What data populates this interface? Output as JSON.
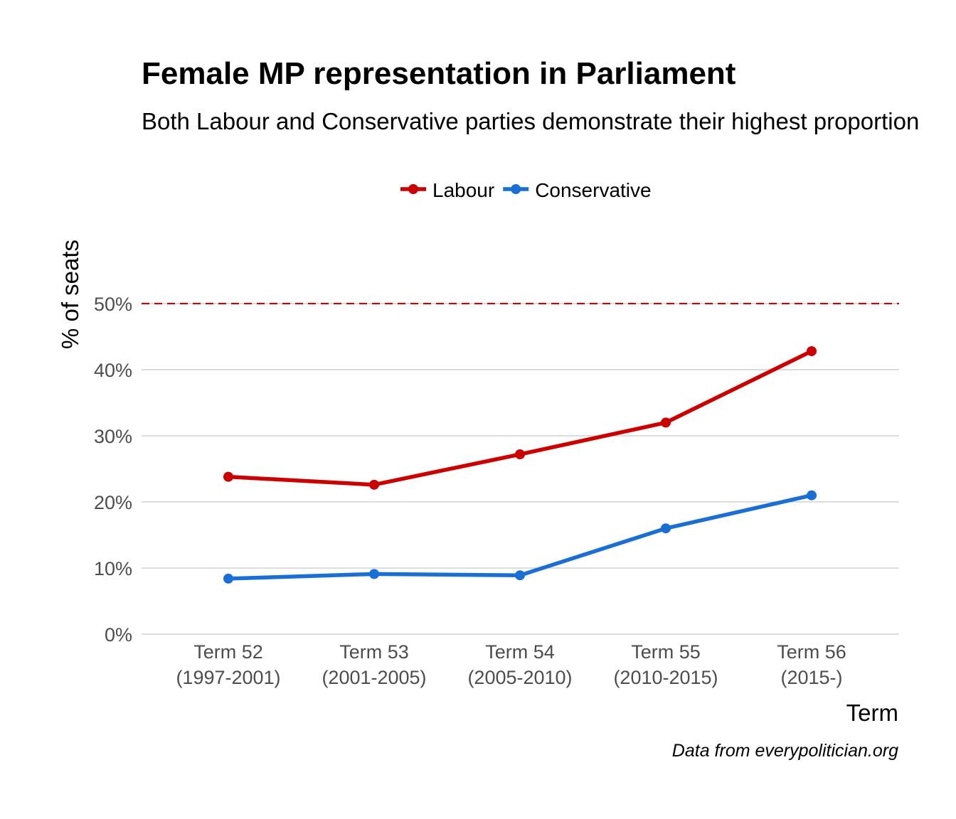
{
  "chart_data": {
    "type": "line",
    "title": "Female MP representation in Parliament",
    "subtitle": "Both Labour and Conservative parties demonstrate their highest proportion",
    "xlabel": "Term",
    "ylabel": "% of seats",
    "caption": "Data from everypolitician.org",
    "categories": [
      {
        "line1": "Term 52",
        "line2": "(1997-2001)"
      },
      {
        "line1": "Term 53",
        "line2": "(2001-2005)"
      },
      {
        "line1": "Term 54",
        "line2": "(2005-2010)"
      },
      {
        "line1": "Term 55",
        "line2": "(2010-2015)"
      },
      {
        "line1": "Term 56",
        "line2": "(2015-)"
      }
    ],
    "series": [
      {
        "name": "Labour",
        "color": "#cc0000",
        "values": [
          23.8,
          22.6,
          27.2,
          32.0,
          42.8
        ]
      },
      {
        "name": "Conservative",
        "color": "#1a6fd6",
        "values": [
          8.4,
          9.1,
          8.9,
          16.0,
          21.0
        ]
      }
    ],
    "ylim": [
      0,
      50
    ],
    "yticks": [
      0,
      10,
      20,
      30,
      40,
      50
    ],
    "ytick_labels": [
      "0%",
      "10%",
      "20%",
      "30%",
      "40%",
      "50%"
    ],
    "reference_line": {
      "value": 50,
      "style": "dashed",
      "color": "#a31515"
    },
    "grid": "horizontal",
    "legend_position": "top"
  }
}
